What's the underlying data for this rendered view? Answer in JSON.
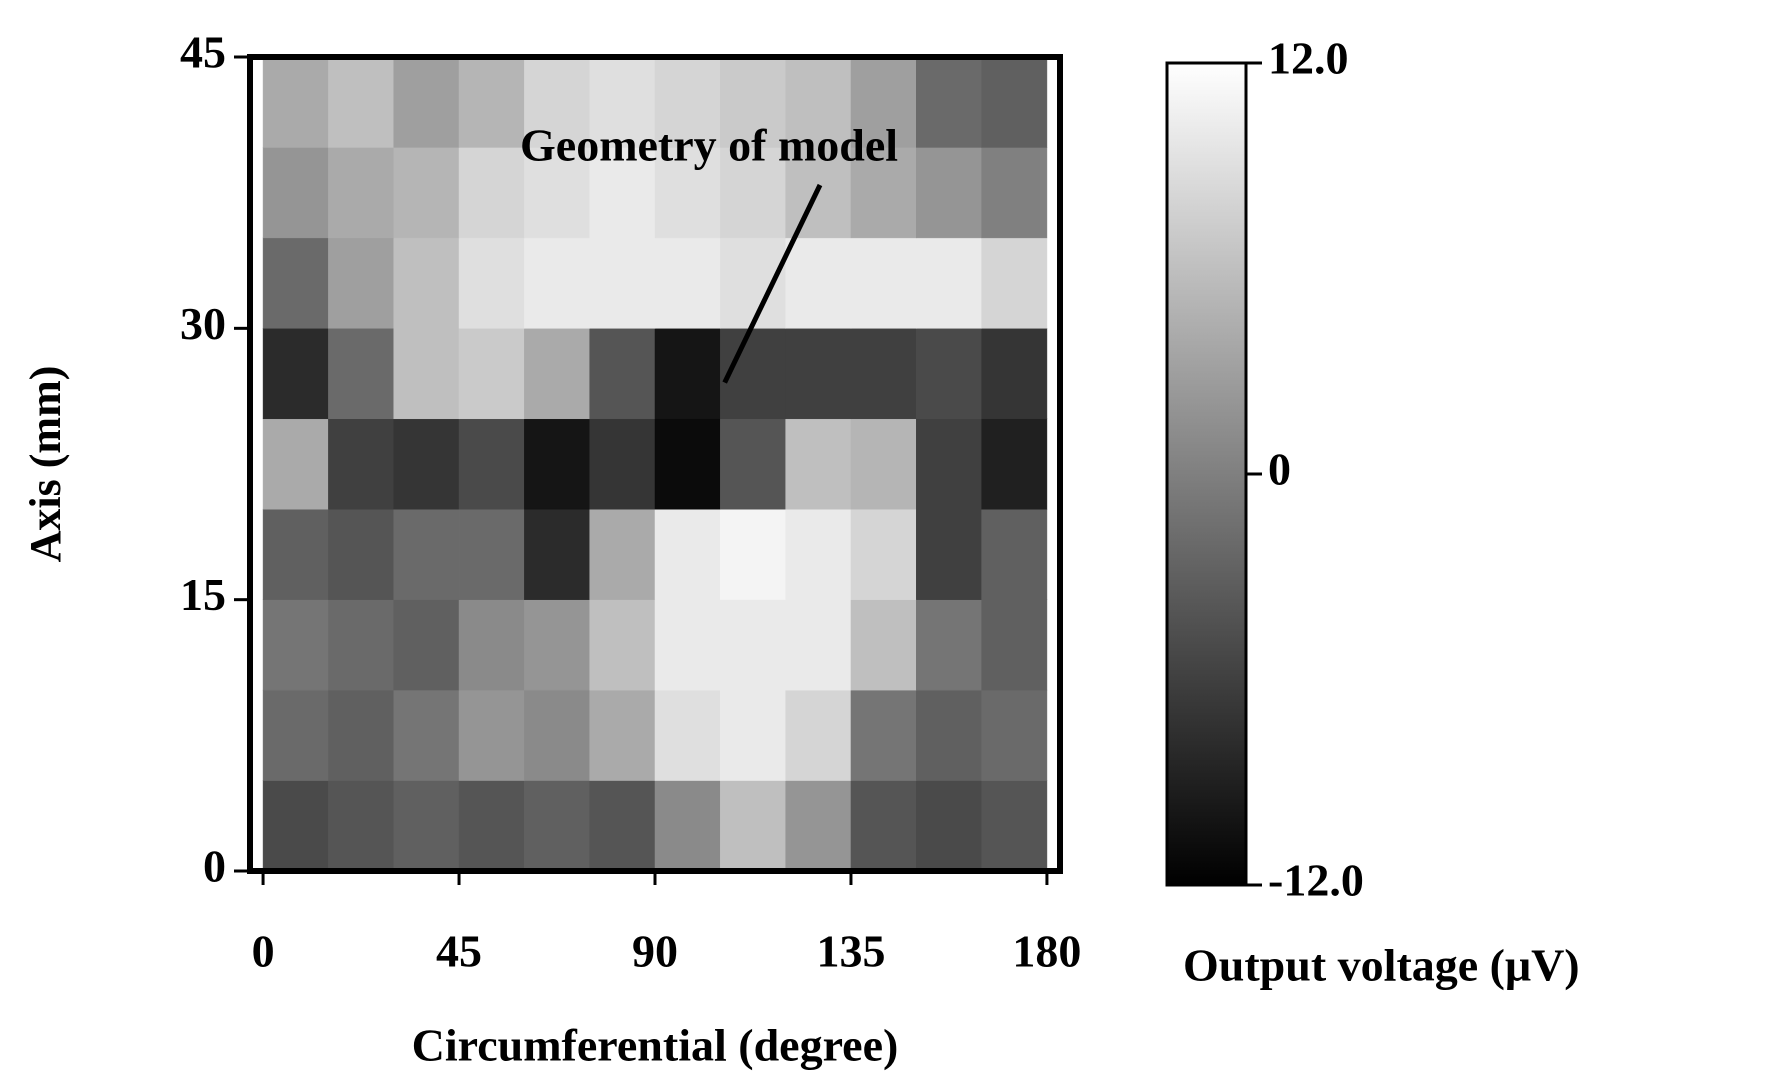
{
  "chart_data": {
    "type": "heatmap",
    "xlabel": "Circumferential (degree)",
    "ylabel": "Axis (mm)",
    "x": [
      7.5,
      22.5,
      37.5,
      52.5,
      67.5,
      82.5,
      97.5,
      112.5,
      127.5,
      142.5,
      157.5,
      172.5
    ],
    "y": [
      2.5,
      7.5,
      12.5,
      17.5,
      22.5,
      27.5,
      32.5,
      37.5,
      42.5
    ],
    "values": [
      [
        -5,
        -4,
        -3,
        -4,
        -3,
        -4,
        1,
        6,
        2,
        -4,
        -5,
        -4
      ],
      [
        -2,
        -3,
        -1,
        2,
        1,
        4,
        9,
        10,
        8,
        -1,
        -3,
        -2
      ],
      [
        -1,
        -2,
        -3,
        1,
        2,
        6,
        10,
        10,
        10,
        6,
        -1,
        -3
      ],
      [
        -3,
        -4,
        -2,
        -2,
        -8,
        4,
        10,
        11,
        10,
        8,
        -6,
        -3
      ],
      [
        4,
        -6,
        -7,
        -5,
        -10,
        -7,
        -11,
        -4,
        6,
        5,
        -6,
        -9
      ],
      [
        -8,
        -2,
        6,
        7,
        4,
        -4,
        -10,
        -6,
        -6,
        -6,
        -5,
        -7
      ],
      [
        -2,
        3,
        6,
        9,
        10,
        10,
        10,
        9,
        10,
        10,
        10,
        8
      ],
      [
        2,
        4,
        5,
        8,
        9,
        10,
        9,
        8,
        6,
        4,
        2,
        0
      ],
      [
        4,
        6,
        3,
        5,
        8,
        9,
        8,
        7,
        6,
        3,
        -2,
        -3
      ]
    ],
    "xlim": [
      -3,
      183
    ],
    "ylim": [
      0,
      45
    ],
    "xticks": [
      0,
      45,
      90,
      135,
      180
    ],
    "yticks": [
      0,
      15,
      30,
      45
    ],
    "colors": [
      "#000000",
      "#ffffff"
    ],
    "annotation": {
      "text": "Geometry of model",
      "xy": [
        106,
        27
      ]
    },
    "colorbar": {
      "label": "Output voltage (μV)",
      "lim": [
        -12,
        12
      ],
      "ticks": [
        {
          "value": 12,
          "label": "12.0"
        },
        0,
        {
          "value": -12,
          "label": "-12.0"
        }
      ]
    }
  }
}
